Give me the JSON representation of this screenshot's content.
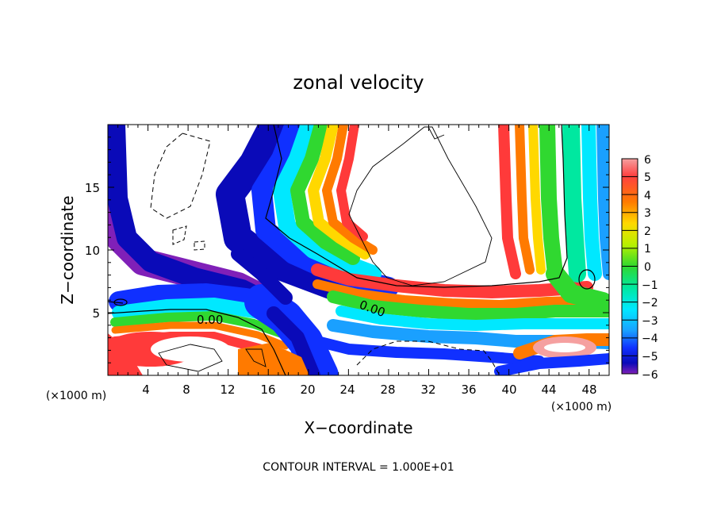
{
  "chart_data": {
    "type": "heatmap",
    "title": "zonal velocity",
    "xlabel": "X−coordinate",
    "ylabel": "Z−coordinate",
    "x_unit_note": "(×1000 m)",
    "z_unit_note": "(×1000 m)",
    "footer": "CONTOUR INTERVAL = 1.000E+01",
    "xlim": [
      0,
      50
    ],
    "ylim": [
      0,
      20
    ],
    "x_ticks": [
      "4",
      "8",
      "12",
      "16",
      "20",
      "24",
      "28",
      "32",
      "36",
      "40",
      "44",
      "48"
    ],
    "y_ticks": [
      "5",
      "10",
      "15"
    ],
    "colorbar": {
      "range": [
        -6,
        6
      ],
      "ticks": [
        "6",
        "5",
        "4",
        "3",
        "2",
        "1",
        "0",
        "−1",
        "−2",
        "−3",
        "−4",
        "−5",
        "−6"
      ]
    },
    "contour_labels": [
      "0.00",
      "0.00"
    ],
    "colors": {
      "c_pos6": "#f5a0a0",
      "c_pos5": "#ff3a3a",
      "c_pos4": "#ff7a00",
      "c_pos3": "#ffd800",
      "c_pos2": "#b8f000",
      "c_pos1": "#30d830",
      "c_zero": "#00e8a0",
      "c_neg2": "#00e8ff",
      "c_neg3": "#1aa0ff",
      "c_neg4": "#1030ff",
      "c_neg5": "#0a0ab8",
      "c_neg6": "#8020b8"
    }
  }
}
